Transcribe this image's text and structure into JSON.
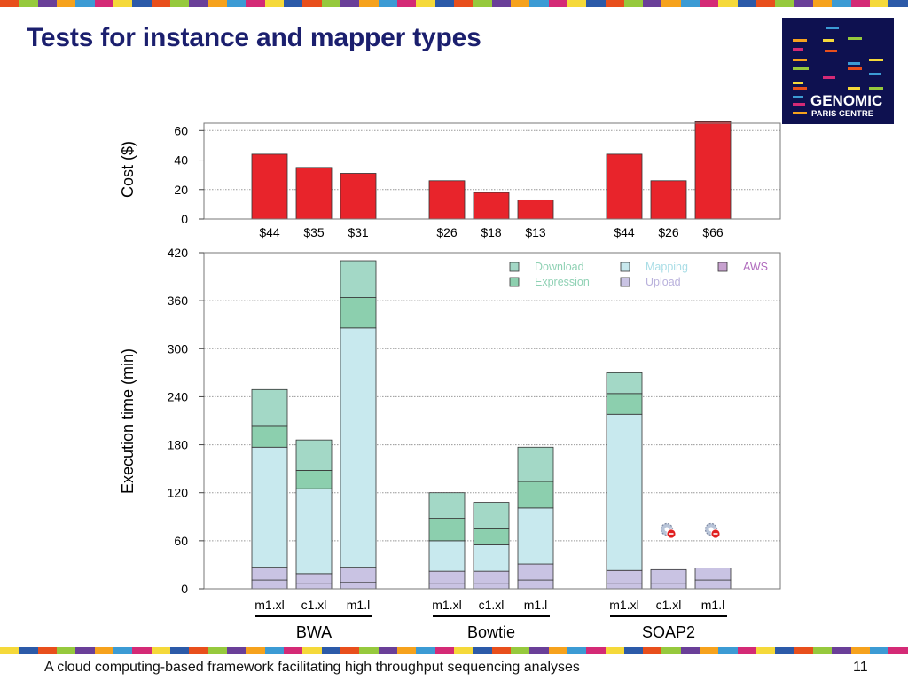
{
  "slide": {
    "title": "Tests for instance and mapper types",
    "footer": "A cloud computing-based framework facilitating high throughput sequencing analyses",
    "page_number": "11"
  },
  "logo": {
    "line1": "GENOMIC",
    "line2": "PARIS CENTRE"
  },
  "colors": {
    "title": "#1b1f6e",
    "cost_bar": "#e8242b",
    "download": "#a3d8c6",
    "expression": "#8ccfae",
    "mapping": "#c8e9ee",
    "upload": "#c9c3e3",
    "aws": "#c7a1cf",
    "logo_bg": "#0e1150",
    "strip": [
      "#e84f1c",
      "#f6a21d",
      "#f5d93a",
      "#96c93d",
      "#3c9bd4",
      "#2c5aa8",
      "#6a3f98",
      "#d42a76"
    ]
  },
  "chart_data": [
    {
      "type": "bar",
      "title": "",
      "ylabel": "Cost ($)",
      "xlabel": "",
      "ylim": [
        0,
        65
      ],
      "yticks": [
        "0",
        "20",
        "40",
        "60"
      ],
      "groups": [
        "BWA",
        "Bowtie",
        "SOAP2"
      ],
      "categories": [
        "m1.xl",
        "c1.xl",
        "m1.l",
        "m1.xl",
        "c1.xl",
        "m1.l",
        "m1.xl",
        "c1.xl",
        "m1.l"
      ],
      "values": [
        44,
        35,
        31,
        26,
        18,
        13,
        44,
        26,
        66
      ],
      "value_labels": [
        "$44",
        "$35",
        "$31",
        "$26",
        "$18",
        "$13",
        "$44",
        "$26",
        "$66"
      ]
    },
    {
      "type": "bar",
      "stacked": true,
      "title": "",
      "ylabel": "Execution time (min)",
      "xlabel": "",
      "ylim": [
        0,
        420
      ],
      "yticks": [
        "0",
        "60",
        "120",
        "180",
        "240",
        "300",
        "360",
        "420"
      ],
      "groups": [
        "BWA",
        "Bowtie",
        "SOAP2"
      ],
      "categories": [
        "m1.xl",
        "c1.xl",
        "m1.l",
        "m1.xl",
        "c1.xl",
        "m1.l",
        "m1.xl",
        "c1.xl",
        "m1.l"
      ],
      "series": [
        {
          "name": "AWS",
          "values": [
            11,
            7,
            8,
            7,
            7,
            11,
            7,
            7,
            11
          ]
        },
        {
          "name": "Upload",
          "values": [
            16,
            12,
            19,
            15,
            15,
            20,
            16,
            17,
            15
          ]
        },
        {
          "name": "Mapping",
          "values": [
            150,
            106,
            299,
            38,
            33,
            70,
            195,
            0,
            0
          ]
        },
        {
          "name": "Expression",
          "values": [
            27,
            23,
            38,
            28,
            20,
            33,
            26,
            0,
            0
          ]
        },
        {
          "name": "Download",
          "values": [
            45,
            38,
            46,
            32,
            33,
            43,
            26,
            0,
            0
          ]
        }
      ],
      "legend": {
        "placement": "top-right",
        "items": [
          "Download",
          "Mapping",
          "AWS",
          "Expression",
          "Upload"
        ]
      },
      "failed_markers": [
        "c1.xl",
        "m1.l"
      ]
    }
  ]
}
